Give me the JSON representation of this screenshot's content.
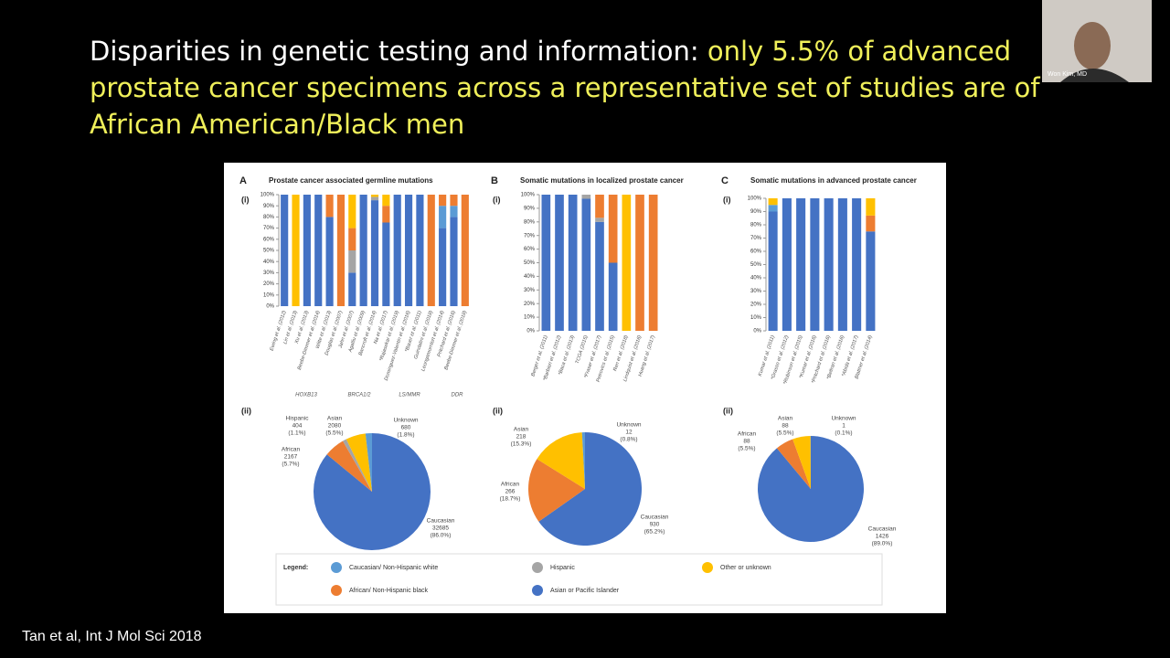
{
  "slide": {
    "title_lead": "Disparities in genetic testing and information: ",
    "title_highlight": "only 5.5% of advanced prostate cancer specimens across a representative set of studies are of African American/Black men",
    "citation": "Tan et al, Int J Mol Sci 2018"
  },
  "video": {
    "participant": "Won Kim, MD"
  },
  "figure": {
    "ylim": [
      0,
      100
    ],
    "yticks": [
      {
        "value": 0,
        "label": "0%"
      },
      {
        "value": 10,
        "label": "10%"
      },
      {
        "value": 20,
        "label": "20%"
      },
      {
        "value": 30,
        "label": "30%"
      },
      {
        "value": 40,
        "label": "40%"
      },
      {
        "value": 50,
        "label": "50%"
      },
      {
        "value": 60,
        "label": "60%"
      },
      {
        "value": 70,
        "label": "70%"
      },
      {
        "value": 80,
        "label": "80%"
      },
      {
        "value": 90,
        "label": "90%"
      },
      {
        "value": 100,
        "label": "100%"
      }
    ],
    "sub_i": "(i)",
    "sub_ii": "(ii)",
    "panels": [
      {
        "letter": "A",
        "title": "Prostate cancer associated germline mutations",
        "categories": [
          "Ewing et al. (2012)",
          "Lin et al. (2013)",
          "Xu et al. (2013)",
          "Beebe-Dimmer et al. (2014)",
          "Witte et al. (2013)",
          "Douglas et al. (2007)",
          "Jahn et al. (2007)",
          "Agalliu et al. (2009)",
          "Bancroft et al. (2014)",
          "Na et al. (2017)",
          "*Rajasekar et al. (2019)",
          "Dominguez-Valentin et al. (2016)",
          "*Bauer et al. (2011)",
          "Guindalini et al. (2018)",
          "Leongamornlert et al. (2014)",
          "Pritchard et al. (2016)",
          "Beebe-Dimmer et al. (2018)"
        ],
        "groups": [
          "HOXB13",
          "BRCA1/2",
          "LS/MMR",
          "DDR"
        ],
        "series": [
          {
            "color": "#4472c4",
            "values": [
              100,
              0,
              100,
              100,
              80,
              0,
              30,
              100,
              95,
              75,
              100,
              100,
              100,
              0,
              70,
              80,
              0
            ]
          },
          {
            "color": "#5b9bd5",
            "values": [
              0,
              0,
              0,
              0,
              0,
              0,
              0,
              0,
              0,
              0,
              0,
              0,
              0,
              0,
              20,
              10,
              0
            ]
          },
          {
            "color": "#a5a5a5",
            "values": [
              0,
              0,
              0,
              0,
              0,
              0,
              20,
              0,
              3,
              0,
              0,
              0,
              0,
              0,
              0,
              0,
              0
            ]
          },
          {
            "color": "#ed7d31",
            "values": [
              0,
              0,
              0,
              0,
              20,
              100,
              20,
              0,
              0,
              15,
              0,
              0,
              0,
              100,
              10,
              10,
              100
            ]
          },
          {
            "color": "#ffc000",
            "values": [
              0,
              100,
              0,
              0,
              0,
              0,
              30,
              0,
              2,
              10,
              0,
              0,
              0,
              0,
              0,
              0,
              0
            ]
          }
        ],
        "slices": [
          {
            "name": "Caucasian",
            "value": 32685,
            "label": "(86.0%)",
            "color": "#4472c4"
          },
          {
            "name": "African",
            "value": 2167,
            "label": "(5.7%)",
            "color": "#ed7d31"
          },
          {
            "name": "Hispanic",
            "value": 404,
            "label": "(1.1%)",
            "color": "#a5a5a5"
          },
          {
            "name": "Asian",
            "value": 2080,
            "label": "(5.5%)",
            "color": "#ffc000"
          },
          {
            "name": "Unknown",
            "value": 680,
            "label": "(1.8%)",
            "color": "#5b9bd5"
          }
        ]
      },
      {
        "letter": "B",
        "title": "Somatic mutations in localized prostate cancer",
        "categories": [
          "Berger et al. (2011)",
          "*Barbieri et al. (2012)",
          "*Baca et al. (2013)",
          "TCGA (2015)",
          "*Fraser et al. (2017)",
          "Petrovics et al. (2015)",
          "Ren et al. (2018)",
          "Lindquist et al. (2016)",
          "Huang et al. (2017)"
        ],
        "series": [
          {
            "color": "#4472c4",
            "values": [
              100,
              100,
              100,
              97,
              80,
              50,
              0,
              0,
              0
            ]
          },
          {
            "color": "#5b9bd5",
            "values": [
              0,
              0,
              0,
              0,
              0,
              0,
              0,
              0,
              0
            ]
          },
          {
            "color": "#a5a5a5",
            "values": [
              0,
              0,
              0,
              3,
              3,
              0,
              0,
              0,
              0
            ]
          },
          {
            "color": "#ed7d31",
            "values": [
              0,
              0,
              0,
              0,
              17,
              50,
              0,
              100,
              100
            ]
          },
          {
            "color": "#ffc000",
            "values": [
              0,
              0,
              0,
              0,
              0,
              0,
              100,
              0,
              0
            ]
          }
        ],
        "slices": [
          {
            "name": "Caucasian",
            "value": 930,
            "label": "(65.2%)",
            "color": "#4472c4"
          },
          {
            "name": "African",
            "value": 266,
            "label": "(18.7%)",
            "color": "#ed7d31"
          },
          {
            "name": "Asian",
            "value": 218,
            "label": "(15.3%)",
            "color": "#ffc000"
          },
          {
            "name": "Unknown",
            "value": 12,
            "label": "(0.8%)",
            "color": "#5b9bd5"
          }
        ]
      },
      {
        "letter": "C",
        "title": "Somatic mutations in advanced prostate cancer",
        "categories": [
          "Kumar et al. (2011)",
          "*Grasso et al. (2012)",
          "*Robinson et al. (2015)",
          "*Kumar et al. (2016)",
          "*Pritchard et al. (2016)",
          "*Beltran et al. (2016)",
          "*Abida et al. (2017)",
          "Blattner et al. (2014)"
        ],
        "series": [
          {
            "color": "#4472c4",
            "values": [
              90,
              100,
              100,
              100,
              100,
              100,
              100,
              75
            ]
          },
          {
            "color": "#5b9bd5",
            "values": [
              5,
              0,
              0,
              0,
              0,
              0,
              0,
              0
            ]
          },
          {
            "color": "#a5a5a5",
            "values": [
              0,
              0,
              0,
              0,
              0,
              0,
              0,
              0
            ]
          },
          {
            "color": "#ed7d31",
            "values": [
              0,
              0,
              0,
              0,
              0,
              0,
              0,
              12
            ]
          },
          {
            "color": "#ffc000",
            "values": [
              5,
              0,
              0,
              0,
              0,
              0,
              0,
              13
            ]
          }
        ],
        "slices": [
          {
            "name": "Caucasian",
            "value": 1426,
            "label": "(89.0%)",
            "color": "#4472c4"
          },
          {
            "name": "African",
            "value": 88,
            "label": "(5.5%)",
            "color": "#ed7d31"
          },
          {
            "name": "Asian",
            "value": 88,
            "label": "(5.5%)",
            "color": "#ffc000"
          },
          {
            "name": "Unknown",
            "value": 1,
            "label": "(0.1%)",
            "color": "#5b9bd5"
          }
        ]
      }
    ],
    "legend": {
      "title": "Legend:",
      "items": [
        {
          "name": "Caucasian/ Non-Hispanic white",
          "color": "#5b9bd5"
        },
        {
          "name": "Hispanic",
          "color": "#a5a5a5"
        },
        {
          "name": "Other or unknown",
          "color": "#ffc000"
        },
        {
          "name": "African/ Non-Hispanic black",
          "color": "#ed7d31"
        },
        {
          "name": "Asian or Pacific Islander",
          "color": "#4472c4"
        }
      ]
    }
  }
}
